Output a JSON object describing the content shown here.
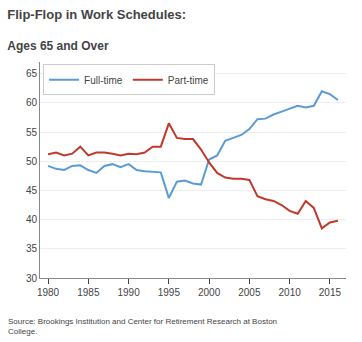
{
  "chart_data": {
    "type": "line",
    "title": "Flip-Flop in Work Schedules:",
    "subtitle": "Ages 65 and Over",
    "annotations": [
      "Source: Brookings Institution and Center for Retirement Research at Boston\nCollege."
    ],
    "x": [
      1980,
      1981,
      1982,
      1983,
      1984,
      1985,
      1986,
      1987,
      1988,
      1989,
      1990,
      1991,
      1992,
      1993,
      1994,
      1995,
      1996,
      1997,
      1998,
      1999,
      2000,
      2001,
      2002,
      2003,
      2004,
      2005,
      2006,
      2007,
      2008,
      2009,
      2010,
      2011,
      2012,
      2013,
      2014,
      2015,
      2016
    ],
    "series": [
      {
        "name": "Full-time",
        "color": "#5b9bd5",
        "values": [
          49.2,
          48.7,
          48.5,
          49.2,
          49.3,
          48.5,
          48.0,
          49.2,
          49.5,
          49.0,
          49.5,
          48.5,
          48.3,
          48.2,
          48.1,
          43.7,
          46.5,
          46.7,
          46.2,
          46.0,
          50.3,
          51.0,
          53.5,
          54.0,
          54.5,
          55.5,
          57.2,
          57.3,
          58.0,
          58.5,
          59.0,
          59.5,
          59.2,
          59.5,
          62.0,
          61.5,
          60.5
        ]
      },
      {
        "name": "Part-time",
        "color": "#c0392b",
        "values": [
          51.2,
          51.5,
          51.0,
          51.3,
          52.5,
          51.0,
          51.5,
          51.5,
          51.3,
          51.0,
          51.3,
          51.2,
          51.5,
          52.5,
          52.5,
          56.5,
          54.0,
          53.8,
          53.8,
          52.0,
          49.8,
          48.0,
          47.2,
          47.0,
          47.0,
          46.8,
          44.0,
          43.5,
          43.2,
          42.5,
          41.5,
          41.0,
          43.2,
          42.0,
          38.5,
          39.5,
          39.8
        ]
      }
    ],
    "xlim": [
      1979,
      2017
    ],
    "xticks": [
      1980,
      1985,
      1990,
      1995,
      2000,
      2005,
      2010,
      2015
    ],
    "ylim": [
      30,
      67
    ],
    "yticks": [
      30,
      35,
      40,
      45,
      50,
      55,
      60,
      65
    ],
    "grid": true,
    "legend": "upper left"
  }
}
